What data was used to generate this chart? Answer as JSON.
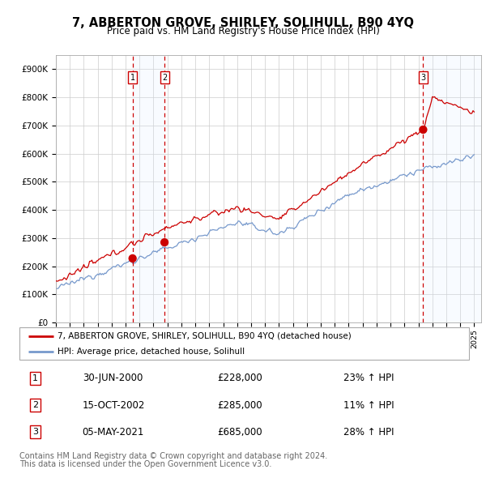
{
  "title": "7, ABBERTON GROVE, SHIRLEY, SOLIHULL, B90 4YQ",
  "subtitle": "Price paid vs. HM Land Registry's House Price Index (HPI)",
  "title_fontsize": 10.5,
  "subtitle_fontsize": 8.5,
  "ylim": [
    0,
    950000
  ],
  "yticks": [
    0,
    100000,
    200000,
    300000,
    400000,
    500000,
    600000,
    700000,
    800000,
    900000
  ],
  "ytick_labels": [
    "£0",
    "£100K",
    "£200K",
    "£300K",
    "£400K",
    "£500K",
    "£600K",
    "£700K",
    "£800K",
    "£900K"
  ],
  "hpi_color": "#7799cc",
  "price_color": "#cc0000",
  "sale_marker_color": "#cc0000",
  "vline_color": "#cc0000",
  "shade_color": "#ddeeff",
  "transactions": [
    {
      "label": "1",
      "date_num": 2000.5,
      "price": 228000,
      "pct": "23%",
      "date_str": "30-JUN-2000"
    },
    {
      "label": "2",
      "date_num": 2002.79,
      "price": 285000,
      "pct": "11%",
      "date_str": "15-OCT-2002"
    },
    {
      "label": "3",
      "date_num": 2021.34,
      "price": 685000,
      "pct": "28%",
      "date_str": "05-MAY-2021"
    }
  ],
  "legend_entries": [
    "7, ABBERTON GROVE, SHIRLEY, SOLIHULL, B90 4YQ (detached house)",
    "HPI: Average price, detached house, Solihull"
  ],
  "footer1": "Contains HM Land Registry data © Crown copyright and database right 2024.",
  "footer2": "This data is licensed under the Open Government Licence v3.0.",
  "footer_fontsize": 7,
  "table_fontsize": 8.5,
  "legend_fontsize": 7.5
}
